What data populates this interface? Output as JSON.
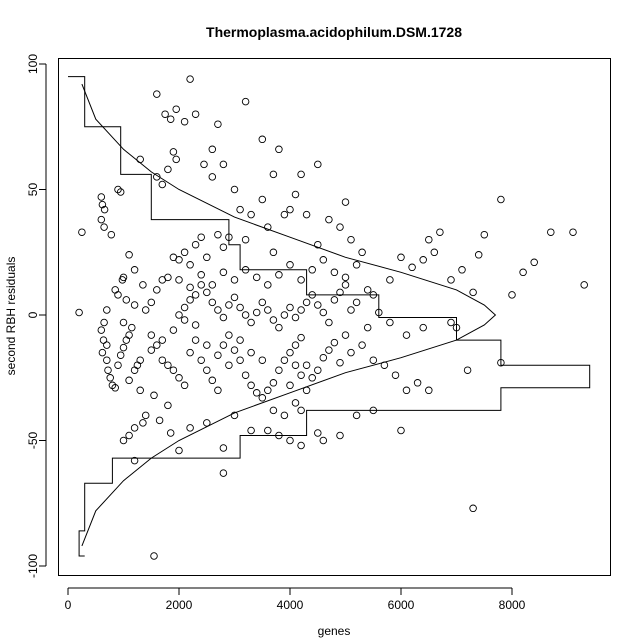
{
  "chart_data": {
    "type": "scatter",
    "title": "Thermoplasma.acidophilum.DSM.1728",
    "xlabel": "genes",
    "ylabel": "second RBH residuals",
    "xlim": [
      0,
      9500
    ],
    "ylim": [
      -100,
      100
    ],
    "xticks": [
      0,
      2000,
      4000,
      6000,
      8000
    ],
    "yticks": [
      -100,
      -50,
      0,
      50,
      100
    ],
    "grid": false,
    "legend": "none",
    "points": [
      [
        200,
        1
      ],
      [
        250,
        33
      ],
      [
        1600,
        88
      ],
      [
        2200,
        94
      ],
      [
        1950,
        82
      ],
      [
        1750,
        80
      ],
      [
        1850,
        78
      ],
      [
        3200,
        85
      ],
      [
        2100,
        77
      ],
      [
        1900,
        65
      ],
      [
        1950,
        62
      ],
      [
        1800,
        58
      ],
      [
        2450,
        60
      ],
      [
        2600,
        66
      ],
      [
        2800,
        60
      ],
      [
        3500,
        70
      ],
      [
        3800,
        66
      ],
      [
        2300,
        80
      ],
      [
        2700,
        76
      ],
      [
        1300,
        62
      ],
      [
        1600,
        55
      ],
      [
        1700,
        52
      ],
      [
        900,
        50
      ],
      [
        950,
        49
      ],
      [
        600,
        47
      ],
      [
        620,
        44
      ],
      [
        660,
        42
      ],
      [
        600,
        38
      ],
      [
        650,
        35
      ],
      [
        780,
        32
      ],
      [
        1100,
        24
      ],
      [
        1200,
        18
      ],
      [
        1350,
        12
      ],
      [
        1000,
        15
      ],
      [
        980,
        14
      ],
      [
        850,
        10
      ],
      [
        900,
        8
      ],
      [
        1050,
        6
      ],
      [
        1200,
        4
      ],
      [
        700,
        2
      ],
      [
        650,
        -3
      ],
      [
        600,
        -6
      ],
      [
        640,
        -10
      ],
      [
        700,
        -12
      ],
      [
        620,
        -15
      ],
      [
        700,
        -18
      ],
      [
        720,
        -22
      ],
      [
        760,
        -25
      ],
      [
        800,
        -28
      ],
      [
        850,
        -29
      ],
      [
        900,
        -20
      ],
      [
        950,
        -16
      ],
      [
        1000,
        -13
      ],
      [
        1100,
        -8
      ],
      [
        1150,
        -5
      ],
      [
        1250,
        -20
      ],
      [
        1300,
        -30
      ],
      [
        1400,
        -40
      ],
      [
        1350,
        -43
      ],
      [
        1200,
        -45
      ],
      [
        1100,
        -48
      ],
      [
        1000,
        -50
      ],
      [
        1200,
        -58
      ],
      [
        1550,
        -32
      ],
      [
        1650,
        -42
      ],
      [
        1800,
        -36
      ],
      [
        1850,
        -47
      ],
      [
        2000,
        -54
      ],
      [
        2200,
        -45
      ],
      [
        2500,
        -43
      ],
      [
        2800,
        -53
      ],
      [
        2800,
        -63
      ],
      [
        3000,
        -40
      ],
      [
        3300,
        -46
      ],
      [
        3600,
        -46
      ],
      [
        3800,
        -48
      ],
      [
        4000,
        -50
      ],
      [
        4200,
        -52
      ],
      [
        4500,
        -47
      ],
      [
        4600,
        -50
      ],
      [
        4900,
        -48
      ],
      [
        5200,
        -40
      ],
      [
        5500,
        -38
      ],
      [
        6000,
        -46
      ],
      [
        6300,
        -27
      ],
      [
        6500,
        -30
      ],
      [
        7200,
        -22
      ],
      [
        7800,
        -19
      ],
      [
        7300,
        -77
      ],
      [
        1550,
        -96
      ],
      [
        8000,
        8
      ],
      [
        8200,
        17
      ],
      [
        8400,
        21
      ],
      [
        8700,
        33
      ],
      [
        9100,
        33
      ],
      [
        9300,
        12
      ],
      [
        7800,
        46
      ],
      [
        7500,
        32
      ],
      [
        7400,
        24
      ],
      [
        7300,
        9
      ],
      [
        7100,
        18
      ],
      [
        6900,
        14
      ],
      [
        6700,
        33
      ],
      [
        6600,
        25
      ],
      [
        6500,
        30
      ],
      [
        6400,
        22
      ],
      [
        6200,
        19
      ],
      [
        6000,
        23
      ],
      [
        5800,
        14
      ],
      [
        5500,
        8
      ],
      [
        5300,
        25
      ],
      [
        5100,
        30
      ],
      [
        4900,
        35
      ],
      [
        4700,
        38
      ],
      [
        4500,
        28
      ],
      [
        4300,
        40
      ],
      [
        4100,
        48
      ],
      [
        4000,
        42
      ],
      [
        3900,
        40
      ],
      [
        3700,
        25
      ],
      [
        3600,
        35
      ],
      [
        3500,
        46
      ],
      [
        3300,
        40
      ],
      [
        3200,
        30
      ],
      [
        3100,
        42
      ],
      [
        2900,
        31
      ],
      [
        2800,
        27
      ],
      [
        2700,
        32
      ],
      [
        2500,
        23
      ],
      [
        2400,
        31
      ],
      [
        2300,
        28
      ],
      [
        2200,
        20
      ],
      [
        2100,
        25
      ],
      [
        2000,
        22
      ],
      [
        1900,
        23
      ],
      [
        1800,
        15
      ],
      [
        1700,
        14
      ],
      [
        1600,
        10
      ],
      [
        1500,
        5
      ],
      [
        1400,
        2
      ],
      [
        2000,
        0
      ],
      [
        2100,
        3
      ],
      [
        2200,
        6
      ],
      [
        2300,
        8
      ],
      [
        2400,
        12
      ],
      [
        2500,
        9
      ],
      [
        2600,
        5
      ],
      [
        2700,
        2
      ],
      [
        2800,
        -1
      ],
      [
        2900,
        4
      ],
      [
        3000,
        7
      ],
      [
        3100,
        3
      ],
      [
        3200,
        0
      ],
      [
        3300,
        -3
      ],
      [
        3400,
        1
      ],
      [
        3500,
        5
      ],
      [
        3600,
        2
      ],
      [
        3700,
        -2
      ],
      [
        3800,
        -5
      ],
      [
        3900,
        0
      ],
      [
        4000,
        3
      ],
      [
        4100,
        -1
      ],
      [
        4200,
        2
      ],
      [
        4300,
        5
      ],
      [
        4400,
        8
      ],
      [
        4500,
        4
      ],
      [
        4600,
        1
      ],
      [
        4700,
        -3
      ],
      [
        4800,
        6
      ],
      [
        4900,
        9
      ],
      [
        5000,
        12
      ],
      [
        5100,
        2
      ],
      [
        5200,
        5
      ],
      [
        5400,
        -5
      ],
      [
        5600,
        1
      ],
      [
        5800,
        -3
      ],
      [
        6100,
        -8
      ],
      [
        6400,
        -5
      ],
      [
        6900,
        -3
      ],
      [
        7000,
        -5
      ],
      [
        1500,
        -8
      ],
      [
        1600,
        -12
      ],
      [
        1700,
        -18
      ],
      [
        1800,
        -20
      ],
      [
        1900,
        -22
      ],
      [
        2000,
        -25
      ],
      [
        2100,
        -28
      ],
      [
        2200,
        -15
      ],
      [
        2300,
        -10
      ],
      [
        2400,
        -18
      ],
      [
        2500,
        -22
      ],
      [
        2600,
        -26
      ],
      [
        2700,
        -30
      ],
      [
        2800,
        -12
      ],
      [
        2900,
        -8
      ],
      [
        3000,
        -14
      ],
      [
        3100,
        -18
      ],
      [
        3200,
        -24
      ],
      [
        3300,
        -28
      ],
      [
        3400,
        -31
      ],
      [
        3500,
        -33
      ],
      [
        3600,
        -30
      ],
      [
        3700,
        -27
      ],
      [
        3800,
        -22
      ],
      [
        3900,
        -18
      ],
      [
        4000,
        -15
      ],
      [
        4100,
        -12
      ],
      [
        4200,
        -9
      ],
      [
        4300,
        -20
      ],
      [
        4400,
        -25
      ],
      [
        4500,
        -22
      ],
      [
        4600,
        -17
      ],
      [
        4700,
        -14
      ],
      [
        4800,
        -11
      ],
      [
        4900,
        -19
      ],
      [
        5000,
        -8
      ],
      [
        5100,
        -15
      ],
      [
        5300,
        -12
      ],
      [
        5500,
        -18
      ],
      [
        5700,
        -20
      ],
      [
        5900,
        -24
      ],
      [
        6100,
        -30
      ],
      [
        4100,
        -35
      ],
      [
        4200,
        -38
      ],
      [
        3700,
        -38
      ],
      [
        3900,
        -40
      ],
      [
        4300,
        -30
      ],
      [
        4000,
        -28
      ],
      [
        4200,
        -24
      ],
      [
        4100,
        -20
      ],
      [
        3500,
        -18
      ],
      [
        3300,
        -15
      ],
      [
        3100,
        -10
      ],
      [
        2900,
        -20
      ],
      [
        2700,
        -16
      ],
      [
        2500,
        -12
      ],
      [
        2300,
        -4
      ],
      [
        2100,
        -2
      ],
      [
        1900,
        -6
      ],
      [
        1700,
        -10
      ],
      [
        1500,
        -14
      ],
      [
        1300,
        -18
      ],
      [
        1200,
        -22
      ],
      [
        1100,
        -26
      ],
      [
        1050,
        -10
      ],
      [
        1000,
        -3
      ],
      [
        3600,
        12
      ],
      [
        3800,
        16
      ],
      [
        4000,
        20
      ],
      [
        4200,
        14
      ],
      [
        4400,
        18
      ],
      [
        4600,
        22
      ],
      [
        4800,
        17
      ],
      [
        5000,
        15
      ],
      [
        5200,
        20
      ],
      [
        5400,
        10
      ],
      [
        3400,
        15
      ],
      [
        3200,
        18
      ],
      [
        3000,
        14
      ],
      [
        2800,
        17
      ],
      [
        2600,
        12
      ],
      [
        2400,
        16
      ],
      [
        2200,
        11
      ],
      [
        2000,
        14
      ],
      [
        5000,
        45
      ],
      [
        4500,
        60
      ],
      [
        3000,
        50
      ],
      [
        2600,
        55
      ],
      [
        3700,
        56
      ],
      [
        4200,
        56
      ]
    ],
    "histogram_steps": [
      [
        0,
        95
      ],
      [
        300,
        95
      ],
      [
        300,
        75
      ],
      [
        950,
        75
      ],
      [
        950,
        56
      ],
      [
        1500,
        56
      ],
      [
        1500,
        38
      ],
      [
        2900,
        38
      ],
      [
        2900,
        28
      ],
      [
        3100,
        28
      ],
      [
        3100,
        18
      ],
      [
        4300,
        18
      ],
      [
        4300,
        8
      ],
      [
        5600,
        8
      ],
      [
        5600,
        -1
      ],
      [
        7000,
        -1
      ],
      [
        7000,
        -10
      ],
      [
        7800,
        -10
      ],
      [
        7800,
        -20
      ],
      [
        9400,
        -20
      ],
      [
        9400,
        -29
      ],
      [
        7800,
        -29
      ],
      [
        7800,
        -38
      ],
      [
        4300,
        -38
      ],
      [
        4300,
        -48
      ],
      [
        3100,
        -48
      ],
      [
        3100,
        -57
      ],
      [
        1500,
        -57
      ],
      [
        1500,
        -57
      ],
      [
        800,
        -57
      ],
      [
        800,
        -67
      ],
      [
        300,
        -67
      ],
      [
        300,
        -86
      ],
      [
        200,
        -86
      ],
      [
        200,
        -96
      ],
      [
        300,
        -96
      ]
    ],
    "curve_points": [
      [
        250,
        92
      ],
      [
        500,
        78
      ],
      [
        1000,
        66
      ],
      [
        1500,
        57
      ],
      [
        2000,
        50
      ],
      [
        3000,
        39
      ],
      [
        4000,
        31
      ],
      [
        5000,
        23
      ],
      [
        6000,
        17
      ],
      [
        7000,
        10
      ],
      [
        7500,
        4
      ],
      [
        7700,
        0
      ],
      [
        7500,
        -4
      ],
      [
        7000,
        -10
      ],
      [
        6000,
        -17
      ],
      [
        5000,
        -23
      ],
      [
        4000,
        -31
      ],
      [
        3000,
        -39
      ],
      [
        2000,
        -50
      ],
      [
        1500,
        -57
      ],
      [
        1000,
        -66
      ],
      [
        500,
        -78
      ],
      [
        250,
        -92
      ]
    ]
  }
}
